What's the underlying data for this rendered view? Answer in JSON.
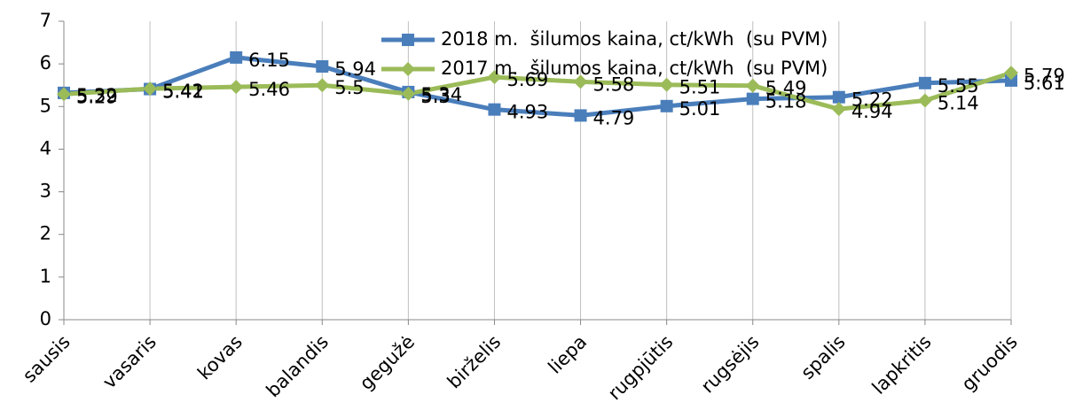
{
  "chart_data": {
    "type": "line",
    "categories": [
      "sausis",
      "vasaris",
      "kovas",
      "balandis",
      "gegužė",
      "birželis",
      "liepa",
      "rugpjūtis",
      "rugsėjis",
      "spalis",
      "lapkritis",
      "gruodis"
    ],
    "series": [
      {
        "name": "2018 m.  šilumos kaina, ct/kWh  (su PVM)",
        "color": "#4a7ebb",
        "marker": "square",
        "values": [
          5.32,
          5.41,
          6.15,
          5.94,
          5.34,
          4.93,
          4.79,
          5.01,
          5.18,
          5.22,
          5.55,
          5.61
        ]
      },
      {
        "name": "2017 m.  šilumos kaina, ct/kWh  (su PVM)",
        "color": "#9bbb59",
        "marker": "diamond",
        "values": [
          5.29,
          5.42,
          5.46,
          5.5,
          5.3,
          5.69,
          5.58,
          5.51,
          5.49,
          4.94,
          5.14,
          5.79
        ]
      }
    ],
    "ylim": [
      0,
      7
    ],
    "yticks": [
      0,
      1,
      2,
      3,
      4,
      5,
      6,
      7
    ],
    "grid": true,
    "legend": "top"
  }
}
